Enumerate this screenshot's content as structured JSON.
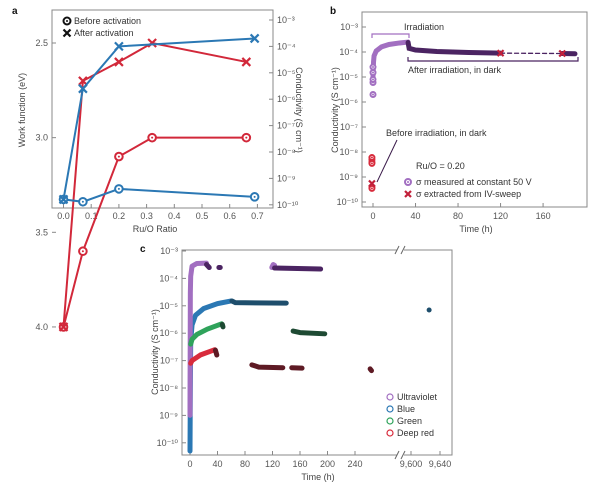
{
  "colors": {
    "red": "#d2283a",
    "blue": "#2b78b4",
    "uv": "#a26fc1",
    "uv_dark": "#4b2462",
    "blue_dark": "#1e4e6c",
    "green": "#2fa35b",
    "green_dark": "#1e4a33",
    "deepred": "#d82b3c",
    "deepred_dark": "#5e1a24",
    "xmark": "#c2203a"
  },
  "chart_data": [
    {
      "panel": "a",
      "type": "line",
      "xlabel": "Ru/O Ratio",
      "ylabel_left": "Work function (eV)",
      "ylabel_right": "Conductivity (S cm⁻¹)",
      "xlim": [
        -0.04,
        0.76
      ],
      "ylim_left": [
        4.24,
        2.33
      ],
      "ylim_right": [
        1e-10,
        0.001
      ],
      "y_right_scale": "log",
      "xticks": [
        "0.0",
        "0.1",
        "0.2",
        "0.3",
        "0.4",
        "0.5",
        "0.6",
        "0.7"
      ],
      "xtick_values": [
        0,
        0.1,
        0.2,
        0.3,
        0.4,
        0.5,
        0.6,
        0.7
      ],
      "yticks_left": [
        "2.5",
        "3.0",
        "3.5",
        "4.0"
      ],
      "ytick_left_values": [
        2.5,
        3.0,
        3.5,
        4.0
      ],
      "yticks_right": [
        "10⁻³",
        "10⁻⁴",
        "10⁻⁵",
        "10⁻⁶",
        "10⁻⁷",
        "10⁻⁸",
        "10⁻⁹",
        "10⁻¹⁰"
      ],
      "legend": [
        {
          "label": "Before activation",
          "marker": "circle"
        },
        {
          "label": "After activation",
          "marker": "cross"
        }
      ],
      "legend_position": "top-left",
      "series": [
        {
          "name": "Work function, before activation",
          "axis": "left",
          "color": "red",
          "marker": "circle",
          "points": [
            [
              0,
              4.0
            ],
            [
              0.07,
              3.6
            ],
            [
              0.2,
              3.1
            ],
            [
              0.32,
              3.0
            ],
            [
              0.66,
              3.0
            ]
          ]
        },
        {
          "name": "Work function, after activation",
          "axis": "left",
          "color": "red",
          "marker": "cross",
          "points": [
            [
              0,
              4.0
            ],
            [
              0.07,
              2.7
            ],
            [
              0.2,
              2.6
            ],
            [
              0.32,
              2.5
            ],
            [
              0.66,
              2.6
            ]
          ]
        },
        {
          "name": "Conductivity, before activation",
          "axis": "right",
          "color": "blue",
          "marker": "circle",
          "points": [
            [
              0,
              1.6e-10
            ],
            [
              0.07,
              1.3e-10
            ],
            [
              0.2,
              4e-10
            ],
            [
              0.69,
              2e-10
            ]
          ]
        },
        {
          "name": "Conductivity, after activation",
          "axis": "right",
          "color": "blue",
          "marker": "cross",
          "points": [
            [
              0,
              1.6e-10
            ],
            [
              0.07,
              2.5e-06
            ],
            [
              0.2,
              0.0001
            ],
            [
              0.69,
              0.0002
            ]
          ]
        }
      ]
    },
    {
      "panel": "b",
      "type": "scatter",
      "xlabel": "Time (h)",
      "ylabel": "Conductivity (S cm⁻¹)",
      "xlim": [
        -10,
        202
      ],
      "ylim": [
        1e-10,
        0.001
      ],
      "yscale": "log",
      "xticks": [
        "0",
        "40",
        "80",
        "120",
        "160"
      ],
      "xtick_values": [
        0,
        40,
        80,
        120,
        160
      ],
      "yticks": [
        "10⁻³",
        "10⁻⁴",
        "10⁻⁵",
        "10⁻⁶",
        "10⁻⁷",
        "10⁻⁸",
        "10⁻⁹",
        "10⁻¹⁰"
      ],
      "annotations": {
        "irradiation": "Irradiation",
        "after": "After irradiation, in dark",
        "before": "Before irradiation, in dark",
        "ratio": "Ru/O = 0.20"
      },
      "legend": [
        {
          "label": "σ measured at constant 50 V",
          "marker": "circle"
        },
        {
          "label": "σ extracted from IV-sweep",
          "marker": "cross"
        }
      ],
      "series": [
        {
          "name": "Irradiation",
          "color": "uv",
          "points": [
            [
              0,
              1e-05
            ],
            [
              0.5,
              4e-05
            ],
            [
              1,
              7e-05
            ],
            [
              3,
              0.00011
            ],
            [
              8,
              0.00016
            ],
            [
              15,
              0.0002
            ],
            [
              25,
              0.00023
            ],
            [
              33,
              0.00025
            ]
          ]
        },
        {
          "name": "After irradiation, in dark",
          "color": "uv_dark",
          "points": [
            [
              33,
              0.00024
            ],
            [
              34,
              0.00014
            ],
            [
              40,
              0.00012
            ],
            [
              60,
              0.000105
            ],
            [
              90,
              9.5e-05
            ],
            [
              120,
              9e-05
            ]
          ]
        },
        {
          "name": "After irradiation, in dark (late)",
          "color": "uv_dark",
          "points": [
            [
              178,
              8.7e-05
            ],
            [
              190,
              8.5e-05
            ]
          ]
        },
        {
          "name": "Dashed link",
          "color": "uv_dark",
          "dashed": true,
          "points": [
            [
              120,
              9e-05
            ],
            [
              178,
              8.7e-05
            ]
          ]
        },
        {
          "name": "Early circles",
          "color": "uv",
          "marker": "circle",
          "points": [
            [
              0,
              2e-06
            ],
            [
              0,
              6e-06
            ],
            [
              0,
              8e-06
            ],
            [
              0,
              1.5e-05
            ],
            [
              0,
              2.5e-05
            ]
          ]
        },
        {
          "name": "Before irradiation",
          "color": "deepred",
          "marker": "circle",
          "points": [
            [
              -1,
              4e-09
            ],
            [
              -1,
              5e-09
            ],
            [
              -1,
              6e-09
            ],
            [
              -1,
              3.5e-09
            ],
            [
              -1,
              4e-10
            ],
            [
              -1,
              3.5e-10
            ]
          ]
        },
        {
          "name": "IV-sweep",
          "color": "xmark",
          "marker": "cross",
          "points": [
            [
              -1,
              5.5e-10
            ],
            [
              120,
              9e-05
            ],
            [
              178,
              8.7e-05
            ]
          ]
        }
      ]
    },
    {
      "panel": "c",
      "type": "scatter",
      "xlabel": "Time (h)",
      "ylabel": "Conductivity (S cm⁻¹)",
      "xlim": [
        -10,
        9640
      ],
      "x_axis_break": [
        280,
        9590
      ],
      "ylim": [
        5e-11,
        0.001
      ],
      "yscale": "log",
      "xticks": [
        "0",
        "40",
        "80",
        "120",
        "160",
        "200",
        "240",
        "9,600",
        "9,640"
      ],
      "xtick_values": [
        0,
        40,
        80,
        120,
        160,
        200,
        240,
        9600,
        9640
      ],
      "yticks": [
        "10⁻³",
        "10⁻⁴",
        "10⁻⁵",
        "10⁻⁶",
        "10⁻⁷",
        "10⁻⁸",
        "10⁻⁹",
        "10⁻¹⁰"
      ],
      "legend": [
        {
          "label": "Ultraviolet",
          "color": "uv"
        },
        {
          "label": "Blue",
          "color": "blue"
        },
        {
          "label": "Green",
          "color": "green"
        },
        {
          "label": "Deep red",
          "color": "deepred"
        }
      ],
      "legend_position": "bottom-right",
      "series": [
        {
          "name": "Blue rise",
          "color": "blue",
          "points": [
            [
              0,
              5e-11
            ],
            [
              0.5,
              1e-08
            ],
            [
              1,
              5e-07
            ],
            [
              3,
              2e-06
            ],
            [
              8,
              4.5e-06
            ],
            [
              20,
              8e-06
            ],
            [
              40,
              1.2e-05
            ],
            [
              60,
              1.5e-05
            ]
          ]
        },
        {
          "name": "Blue dark",
          "color": "blue_dark",
          "points": [
            [
              61,
              1.5e-05
            ],
            [
              66,
              1.3e-05
            ],
            [
              140,
              1.25e-05
            ]
          ]
        },
        {
          "name": "Blue long-term",
          "color": "blue_dark",
          "points": [
            [
              9625,
              7e-06
            ]
          ]
        },
        {
          "name": "UV rise",
          "color": "uv",
          "points": [
            [
              0,
              1e-09
            ],
            [
              0.5,
              3e-05
            ],
            [
              1,
              0.00012
            ],
            [
              3,
              0.00028
            ],
            [
              10,
              0.00035
            ],
            [
              24,
              0.00036
            ]
          ]
        },
        {
          "name": "UV dark",
          "color": "uv_dark",
          "points": [
            [
              24,
              0.00032
            ],
            [
              28,
              0.00025
            ]
          ]
        },
        {
          "name": "UV dark 2",
          "color": "uv_dark",
          "points": [
            [
              42,
              0.00025
            ],
            [
              44,
              0.00025
            ]
          ]
        },
        {
          "name": "UV re-irradiation",
          "color": "uv",
          "points": [
            [
              119,
              0.00025
            ],
            [
              121,
              0.00032
            ],
            [
              123,
              0.0003
            ]
          ]
        },
        {
          "name": "UV dark 3",
          "color": "uv_dark",
          "points": [
            [
              123,
              0.00024
            ],
            [
              190,
              0.00022
            ]
          ]
        },
        {
          "name": "Green rise",
          "color": "green",
          "points": [
            [
              1,
              4e-07
            ],
            [
              3,
              6e-07
            ],
            [
              10,
              9e-07
            ],
            [
              25,
              1.4e-06
            ],
            [
              46,
              2.2e-06
            ]
          ]
        },
        {
          "name": "Green dark",
          "color": "green_dark",
          "points": [
            [
              47,
              2.1e-06
            ],
            [
              48,
              1.7e-06
            ]
          ]
        },
        {
          "name": "Green dark 2",
          "color": "green_dark",
          "points": [
            [
              150,
              1.2e-06
            ],
            [
              160,
              1.05e-06
            ],
            [
              196,
              9.5e-07
            ]
          ]
        },
        {
          "name": "Deep red rise",
          "color": "deepred",
          "points": [
            [
              1,
              8e-08
            ],
            [
              3,
              1e-07
            ],
            [
              15,
              1.6e-07
            ],
            [
              36,
              2.5e-07
            ]
          ]
        },
        {
          "name": "Deep red dark",
          "color": "deepred_dark",
          "points": [
            [
              37,
              2.4e-07
            ],
            [
              39,
              1.6e-07
            ]
          ]
        },
        {
          "name": "Deep red dark 2",
          "color": "deepred_dark",
          "points": [
            [
              90,
              7e-08
            ],
            [
              100,
              5.8e-08
            ],
            [
              135,
              5.5e-08
            ]
          ]
        },
        {
          "name": "Deep red dark 3",
          "color": "deepred_dark",
          "points": [
            [
              148,
              5.5e-08
            ],
            [
              163,
              5.3e-08
            ]
          ]
        },
        {
          "name": "Deep red dark 4",
          "color": "deepred_dark",
          "points": [
            [
              262,
              5e-08
            ],
            [
              264,
              4.3e-08
            ]
          ]
        }
      ]
    }
  ]
}
